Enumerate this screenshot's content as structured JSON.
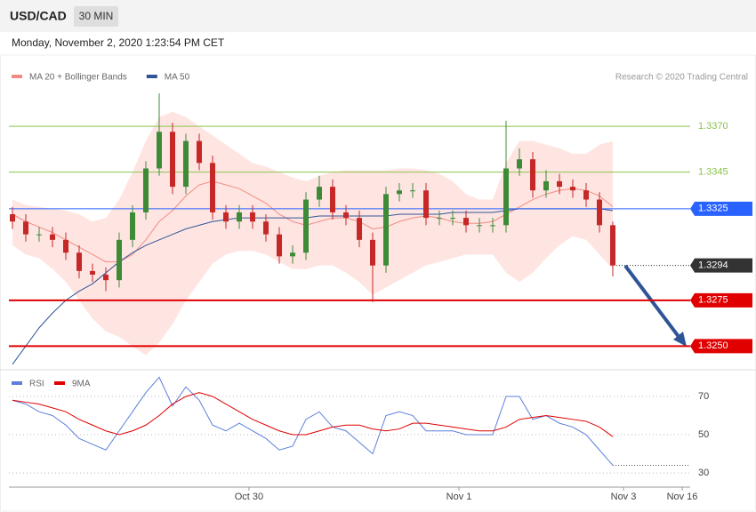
{
  "header": {
    "symbol": "USD/CAD",
    "timeframe": "30 MIN",
    "timestamp": "Monday, November 2, 2020 1:23:54 PM CET",
    "credit": "Research © 2020 Trading Central"
  },
  "chart_data": [
    {
      "type": "candlestick",
      "legend": [
        {
          "name": "MA 20 + Bollinger Bands",
          "color": "#f28b82"
        },
        {
          "name": "MA 50",
          "color": "#2f5597"
        }
      ],
      "xlim": [
        0,
        51
      ],
      "ylim": [
        1.3239,
        1.3405
      ],
      "up_color": "#3d8b37",
      "down_color": "#c62828",
      "band_color": "#fddcd8",
      "open": [
        1.3322,
        1.3318,
        1.3311,
        1.3311,
        1.3308,
        1.3301,
        1.3291,
        1.3289,
        1.3286,
        1.3308,
        1.3323,
        1.3347,
        1.3367,
        1.3337,
        1.3362,
        1.335,
        1.3323,
        1.3318,
        1.3323,
        1.3318,
        1.3311,
        1.3299,
        1.3301,
        1.333,
        1.3337,
        1.3323,
        1.332,
        1.3308,
        1.3294,
        1.3333,
        1.3335,
        1.3335,
        1.332,
        1.332,
        1.332,
        1.3316,
        1.3316,
        1.3316,
        1.3347,
        1.3352,
        1.3335,
        1.334,
        1.3337,
        1.3335,
        1.333,
        1.3316
      ],
      "high": [
        1.3326,
        1.3322,
        1.3315,
        1.3315,
        1.3312,
        1.3305,
        1.3295,
        1.3293,
        1.3312,
        1.3327,
        1.3351,
        1.3388,
        1.3372,
        1.3366,
        1.3366,
        1.3354,
        1.3327,
        1.3327,
        1.3327,
        1.3322,
        1.3315,
        1.3305,
        1.3334,
        1.3343,
        1.3341,
        1.3327,
        1.3324,
        1.3312,
        1.3337,
        1.3339,
        1.3339,
        1.3339,
        1.3324,
        1.3324,
        1.3324,
        1.332,
        1.332,
        1.3373,
        1.3358,
        1.3356,
        1.3346,
        1.3344,
        1.3341,
        1.3339,
        1.3334,
        1.3318
      ],
      "low": [
        1.3314,
        1.3307,
        1.3307,
        1.3304,
        1.3297,
        1.3287,
        1.3285,
        1.328,
        1.3282,
        1.3304,
        1.3319,
        1.3343,
        1.3333,
        1.3333,
        1.3346,
        1.3319,
        1.3314,
        1.3314,
        1.3314,
        1.3307,
        1.3295,
        1.3295,
        1.3297,
        1.3326,
        1.3319,
        1.3316,
        1.3304,
        1.3274,
        1.329,
        1.3329,
        1.3331,
        1.3316,
        1.3316,
        1.3316,
        1.3312,
        1.3312,
        1.3312,
        1.3312,
        1.3343,
        1.3331,
        1.3331,
        1.3333,
        1.3331,
        1.3326,
        1.3312,
        1.3288
      ],
      "close": [
        1.3318,
        1.3311,
        1.3311,
        1.3308,
        1.3301,
        1.3291,
        1.3289,
        1.3286,
        1.3308,
        1.3323,
        1.3347,
        1.3367,
        1.3337,
        1.3362,
        1.335,
        1.3323,
        1.3318,
        1.3323,
        1.3318,
        1.3311,
        1.3299,
        1.3301,
        1.333,
        1.3337,
        1.3323,
        1.332,
        1.3308,
        1.3294,
        1.3333,
        1.3335,
        1.3335,
        1.332,
        1.332,
        1.332,
        1.3316,
        1.3316,
        1.3316,
        1.3347,
        1.3352,
        1.3335,
        1.334,
        1.3337,
        1.3335,
        1.333,
        1.3316,
        1.3294
      ],
      "ma20": [
        1.3322,
        1.3318,
        1.3315,
        1.3312,
        1.3308,
        1.3304,
        1.33,
        1.3296,
        1.3296,
        1.33,
        1.3308,
        1.3318,
        1.3324,
        1.3332,
        1.3338,
        1.334,
        1.3338,
        1.3336,
        1.3332,
        1.3328,
        1.3322,
        1.3318,
        1.3316,
        1.3318,
        1.332,
        1.332,
        1.3318,
        1.3314,
        1.3315,
        1.3318,
        1.332,
        1.3321,
        1.332,
        1.3318,
        1.3317,
        1.3317,
        1.3318,
        1.3322,
        1.3326,
        1.333,
        1.3333,
        1.3335,
        1.3336,
        1.3335,
        1.3332,
        1.3326
      ],
      "upper": [
        1.333,
        1.3327,
        1.3326,
        1.3325,
        1.3324,
        1.3322,
        1.3318,
        1.332,
        1.333,
        1.3345,
        1.3362,
        1.3375,
        1.3378,
        1.3375,
        1.337,
        1.3365,
        1.336,
        1.3355,
        1.335,
        1.3348,
        1.3345,
        1.3342,
        1.334,
        1.3343,
        1.3345,
        1.3346,
        1.3346,
        1.3346,
        1.3346,
        1.3347,
        1.3347,
        1.3346,
        1.3344,
        1.334,
        1.3333,
        1.333,
        1.333,
        1.335,
        1.3362,
        1.3362,
        1.336,
        1.3358,
        1.3355,
        1.3355,
        1.336,
        1.3362
      ],
      "lower": [
        1.3305,
        1.33,
        1.3298,
        1.3292,
        1.3285,
        1.3275,
        1.3265,
        1.3258,
        1.3255,
        1.325,
        1.3245,
        1.3252,
        1.3262,
        1.3275,
        1.3285,
        1.3295,
        1.33,
        1.3302,
        1.3302,
        1.33,
        1.3296,
        1.3292,
        1.3292,
        1.3294,
        1.3294,
        1.329,
        1.3285,
        1.3278,
        1.3282,
        1.3286,
        1.329,
        1.3294,
        1.3296,
        1.3298,
        1.33,
        1.33,
        1.33,
        1.329,
        1.3285,
        1.329,
        1.3298,
        1.3305,
        1.331,
        1.3308,
        1.33,
        1.3292
      ],
      "ma50": [
        1.324,
        1.325,
        1.326,
        1.3268,
        1.3275,
        1.328,
        1.3284,
        1.329,
        1.3296,
        1.3301,
        1.3305,
        1.3308,
        1.3311,
        1.3314,
        1.3316,
        1.3318,
        1.3319,
        1.332,
        1.332,
        1.332,
        1.332,
        1.332,
        1.332,
        1.3321,
        1.3321,
        1.3321,
        1.3321,
        1.3321,
        1.3321,
        1.3322,
        1.3322,
        1.3322,
        1.3322,
        1.3323,
        1.3323,
        1.3323,
        1.3323,
        1.3324,
        1.3325,
        1.3325,
        1.3325,
        1.3325,
        1.3325,
        1.3325,
        1.3325,
        1.3324
      ],
      "levels": [
        {
          "value": 1.337,
          "label": "1.3370",
          "color": "#8bc34a",
          "style": "text"
        },
        {
          "value": 1.3345,
          "label": "1.3345",
          "color": "#8bc34a",
          "style": "text"
        },
        {
          "value": 1.3325,
          "label": "1.3325",
          "color": "#2962ff",
          "style": "tag"
        },
        {
          "value": 1.3294,
          "label": "1.3294",
          "color": "#333333",
          "style": "tag"
        },
        {
          "value": 1.3275,
          "label": "1.3275",
          "color": "#e00000",
          "style": "tag"
        },
        {
          "value": 1.325,
          "label": "1.3250",
          "color": "#e00000",
          "style": "tag"
        }
      ]
    },
    {
      "type": "line",
      "xlim": [
        0,
        51
      ],
      "ylim": [
        24,
        83
      ],
      "yticks": [
        30,
        50,
        70
      ],
      "xticks": [
        {
          "value": 17.73,
          "label": "Oct 30"
        },
        {
          "value": 33.47,
          "label": "Nov 1"
        },
        {
          "value": 45.8,
          "label": "Nov 3"
        },
        {
          "value": 50.2,
          "label": "Nov 16"
        }
      ],
      "series": [
        {
          "name": "RSI",
          "color": "#5b7fdb",
          "values": [
            68,
            66,
            62,
            60,
            55,
            48,
            45,
            42,
            52,
            62,
            72,
            80,
            65,
            75,
            68,
            55,
            52,
            56,
            52,
            48,
            42,
            44,
            58,
            62,
            54,
            52,
            46,
            40,
            60,
            62,
            60,
            52,
            52,
            52,
            50,
            50,
            50,
            70,
            70,
            58,
            60,
            56,
            54,
            50,
            42,
            34
          ]
        },
        {
          "name": "9MA",
          "color": "#e00000",
          "values": [
            68,
            67,
            66,
            64,
            62,
            58,
            55,
            52,
            50,
            52,
            55,
            60,
            66,
            70,
            72,
            70,
            66,
            62,
            58,
            55,
            52,
            50,
            50,
            52,
            54,
            55,
            55,
            53,
            52,
            53,
            56,
            56,
            55,
            54,
            53,
            52,
            52,
            54,
            58,
            59,
            60,
            59,
            58,
            57,
            54,
            49
          ]
        }
      ]
    }
  ]
}
